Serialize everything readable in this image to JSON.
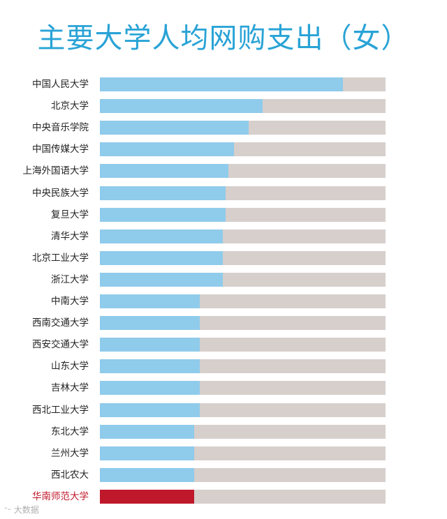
{
  "chart_data": {
    "type": "bar",
    "orientation": "horizontal",
    "title": "主要大学人均网购支出（女）",
    "categories": [
      "中国人民大学",
      "北京大学",
      "中央音乐学院",
      "中国传媒大学",
      "上海外国语大学",
      "中央民族大学",
      "复旦大学",
      "清华大学",
      "北京工业大学",
      "浙江大学",
      "中南大学",
      "西南交通大学",
      "西安交通大学",
      "山东大学",
      "吉林大学",
      "西北工业大学",
      "东北大学",
      "兰州大学",
      "西北农大",
      "华南师范大学"
    ],
    "values": [
      0.85,
      0.57,
      0.52,
      0.47,
      0.45,
      0.44,
      0.44,
      0.43,
      0.43,
      0.43,
      0.35,
      0.35,
      0.35,
      0.35,
      0.35,
      0.35,
      0.33,
      0.33,
      0.33,
      0.33
    ],
    "xlim": [
      0,
      1
    ],
    "highlight_index": 19,
    "colors": {
      "bar": "#8fcbeb",
      "track": "#d6cfcc",
      "highlight": "#c0182b",
      "title": "#29a3d6"
    },
    "grid": false,
    "legend": "none"
  },
  "watermark": "大数据"
}
